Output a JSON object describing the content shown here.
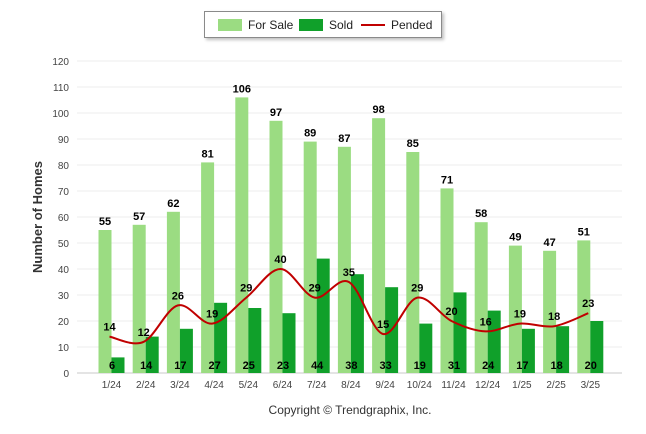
{
  "chart_data": {
    "type": "bar",
    "categories": [
      "1/24",
      "2/24",
      "3/24",
      "4/24",
      "5/24",
      "6/24",
      "7/24",
      "8/24",
      "9/24",
      "10/24",
      "11/24",
      "12/24",
      "1/25",
      "2/25",
      "3/25"
    ],
    "series": [
      {
        "name": "For Sale",
        "kind": "bar",
        "color": "#9bdc82",
        "values": [
          55,
          57,
          62,
          81,
          106,
          97,
          89,
          87,
          98,
          85,
          71,
          58,
          49,
          47,
          51
        ]
      },
      {
        "name": "Sold",
        "kind": "bar",
        "color": "#10a02a",
        "values": [
          6,
          14,
          17,
          27,
          25,
          23,
          44,
          38,
          33,
          19,
          31,
          24,
          17,
          18,
          20
        ]
      },
      {
        "name": "Pended",
        "kind": "line",
        "color": "#c00000",
        "values": [
          14,
          12,
          26,
          19,
          29,
          40,
          29,
          35,
          15,
          29,
          20,
          16,
          19,
          18,
          23
        ]
      }
    ],
    "ylabel": "Number of Homes",
    "xlabel": "",
    "ylim": [
      0,
      120
    ],
    "yticks": [
      0,
      10,
      20,
      30,
      40,
      50,
      60,
      70,
      80,
      90,
      100,
      110,
      120
    ],
    "grid": true,
    "legend_position": "top-center"
  },
  "footer": {
    "copyright": "Copyright © Trendgraphix, Inc."
  }
}
